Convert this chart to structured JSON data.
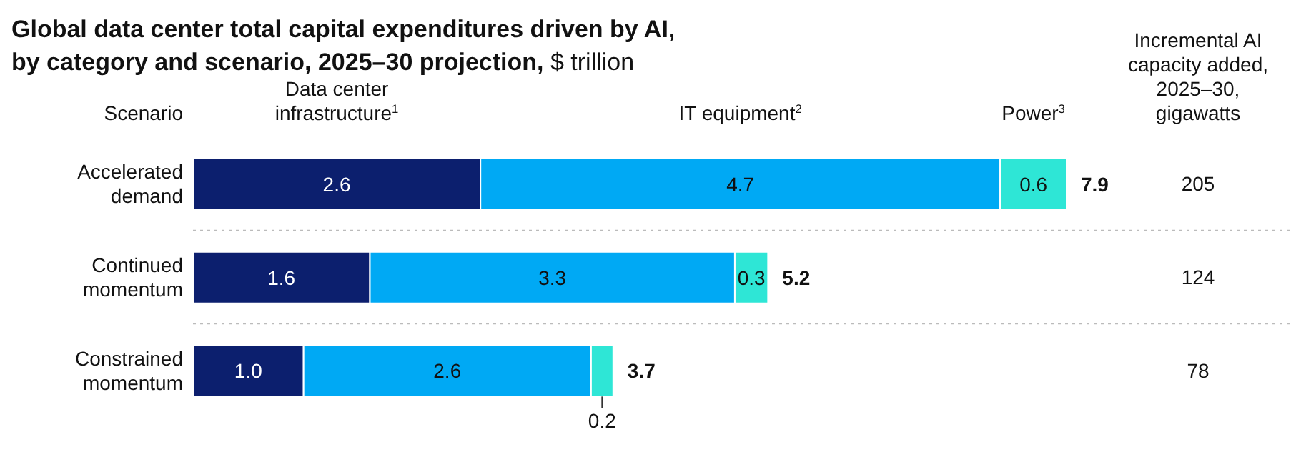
{
  "chart_data": {
    "type": "bar",
    "orientation": "horizontal",
    "stacked": true,
    "title": "Global data center total capital expenditures driven by AI, by category and scenario, 2025–30 projection,",
    "subtitle": "$ trillion",
    "ylabel": "Scenario",
    "categories": [
      "Accelerated demand",
      "Continued momentum",
      "Constrained momentum"
    ],
    "series": [
      {
        "name": "Data center infrastructure$^{1}$",
        "color": "#0c1f6e",
        "values": [
          2.6,
          1.6,
          1.0
        ],
        "value_labels": [
          "2.6",
          "1.6",
          "1.0"
        ]
      },
      {
        "name": "IT equipment$^{2}$",
        "color": "#00a9f4",
        "values": [
          4.7,
          3.3,
          2.6
        ],
        "value_labels": [
          "4.7",
          "3.3",
          "2.6"
        ]
      },
      {
        "name": "Power$^{3}$",
        "color": "#2ee6d6",
        "values": [
          0.6,
          0.3,
          0.2
        ],
        "value_labels": [
          "0.6",
          "0.3",
          "0.2"
        ]
      }
    ],
    "totals": [
      "7.9",
      "5.2",
      "3.7"
    ],
    "annotations": [
      "Incremental AI capacity added, 2025–30, gigawatts",
      "205",
      "124",
      "78"
    ]
  }
}
